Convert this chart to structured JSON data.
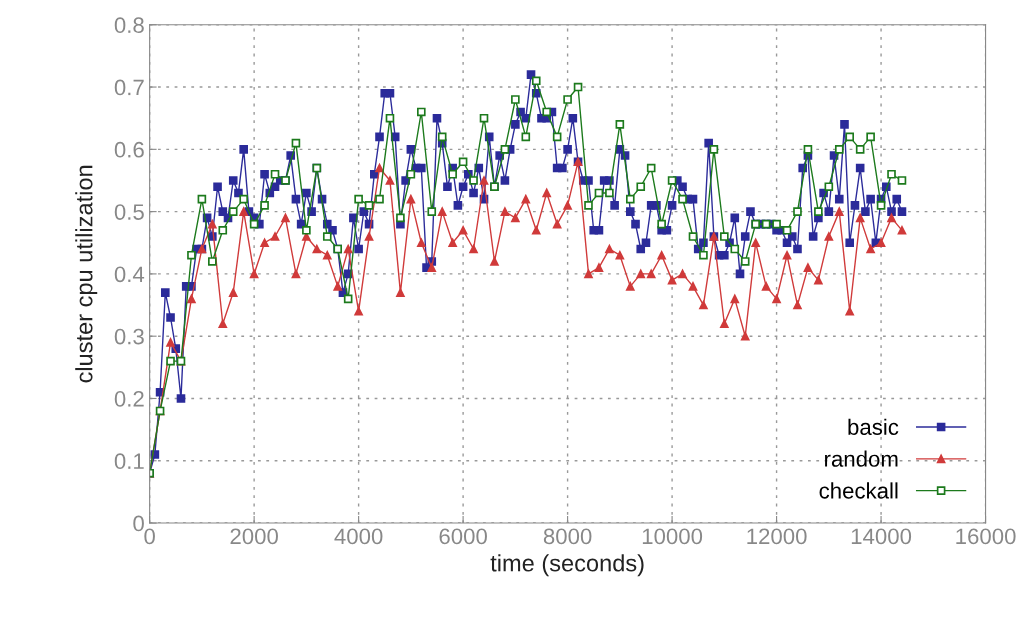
{
  "chart_data": {
    "type": "line",
    "xlabel": "time (seconds)",
    "ylabel": "cluster cpu utilization",
    "xlim": [
      0,
      16000
    ],
    "xticks": [
      0,
      2000,
      4000,
      6000,
      8000,
      10000,
      12000,
      14000,
      16000
    ],
    "ylim": [
      0,
      0.8
    ],
    "yticks": [
      0,
      0.1,
      0.2,
      0.3,
      0.4,
      0.5,
      0.6,
      0.7,
      0.8
    ],
    "grid": true,
    "legend": "bottom right",
    "series": [
      {
        "name": "basic",
        "color": "#2b2b9a",
        "marker": "square",
        "x": [
          0,
          100,
          200,
          300,
          400,
          500,
          600,
          700,
          800,
          900,
          1000,
          1100,
          1200,
          1300,
          1400,
          1500,
          1600,
          1700,
          1800,
          1900,
          2000,
          2100,
          2200,
          2300,
          2400,
          2500,
          2600,
          2700,
          2800,
          2900,
          3000,
          3100,
          3200,
          3300,
          3400,
          3500,
          3600,
          3700,
          3800,
          3900,
          4000,
          4100,
          4200,
          4300,
          4400,
          4500,
          4600,
          4700,
          4800,
          4900,
          5000,
          5100,
          5200,
          5300,
          5400,
          5500,
          5600,
          5700,
          5800,
          5900,
          6000,
          6100,
          6200,
          6300,
          6400,
          6500,
          6600,
          6700,
          6800,
          6900,
          7000,
          7100,
          7200,
          7300,
          7400,
          7500,
          7600,
          7700,
          7800,
          7900,
          8000,
          8100,
          8200,
          8300,
          8400,
          8500,
          8600,
          8700,
          8800,
          8900,
          9000,
          9100,
          9200,
          9300,
          9400,
          9500,
          9600,
          9700,
          9800,
          9900,
          10000,
          10100,
          10200,
          10300,
          10400,
          10500,
          10600,
          10700,
          10800,
          10900,
          11000,
          11100,
          11200,
          11300,
          11400,
          11500,
          11600,
          11700,
          11800,
          11900,
          12000,
          12100,
          12200,
          12300,
          12400,
          12500,
          12600,
          12700,
          12800,
          12900,
          13000,
          13100,
          13200,
          13300,
          13400,
          13500,
          13600,
          13700,
          13800,
          13900,
          14000,
          14100,
          14200,
          14300,
          14400
        ],
        "values": [
          0.08,
          0.11,
          0.21,
          0.37,
          0.33,
          0.28,
          0.2,
          0.38,
          0.38,
          0.44,
          0.44,
          0.49,
          0.46,
          0.54,
          0.5,
          0.49,
          0.55,
          0.53,
          0.6,
          0.5,
          0.49,
          0.48,
          0.56,
          0.53,
          0.54,
          0.55,
          0.55,
          0.59,
          0.52,
          0.48,
          0.53,
          0.5,
          0.57,
          0.52,
          0.48,
          0.47,
          0.44,
          0.37,
          0.4,
          0.49,
          0.44,
          0.5,
          0.48,
          0.56,
          0.62,
          0.69,
          0.69,
          0.62,
          0.48,
          0.55,
          0.6,
          0.57,
          0.57,
          0.41,
          0.42,
          0.65,
          0.61,
          0.54,
          0.57,
          0.51,
          0.54,
          0.56,
          0.53,
          0.57,
          0.52,
          0.62,
          0.54,
          0.59,
          0.55,
          0.6,
          0.64,
          0.66,
          0.65,
          0.72,
          0.69,
          0.65,
          0.65,
          0.66,
          0.57,
          0.57,
          0.6,
          0.65,
          0.58,
          0.55,
          0.55,
          0.47,
          0.47,
          0.55,
          0.55,
          0.51,
          0.6,
          0.59,
          0.5,
          0.48,
          0.44,
          0.45,
          0.51,
          0.51,
          0.47,
          0.47,
          0.51,
          0.55,
          0.54,
          0.52,
          0.52,
          0.44,
          0.45,
          0.61,
          0.46,
          0.43,
          0.43,
          0.45,
          0.49,
          0.4,
          0.46,
          0.5,
          0.48,
          0.48,
          0.48,
          0.48,
          0.47,
          0.47,
          0.45,
          0.46,
          0.44,
          0.57,
          0.59,
          0.46,
          0.49,
          0.53,
          0.5,
          0.59,
          0.52,
          0.64,
          0.45,
          0.51,
          0.57,
          0.5,
          0.52,
          0.45,
          0.52,
          0.54,
          0.5,
          0.52,
          0.5
        ]
      },
      {
        "name": "random",
        "color": "#d03a3a",
        "marker": "triangle",
        "x": [
          0,
          200,
          400,
          600,
          800,
          1000,
          1200,
          1400,
          1600,
          1800,
          2000,
          2200,
          2400,
          2600,
          2800,
          3000,
          3200,
          3400,
          3600,
          3800,
          4000,
          4200,
          4400,
          4600,
          4800,
          5000,
          5200,
          5400,
          5600,
          5800,
          6000,
          6200,
          6400,
          6600,
          6800,
          7000,
          7200,
          7400,
          7600,
          7800,
          8000,
          8200,
          8400,
          8600,
          8800,
          9000,
          9200,
          9400,
          9600,
          9800,
          10000,
          10200,
          10400,
          10600,
          10800,
          11000,
          11200,
          11400,
          11600,
          11800,
          12000,
          12200,
          12400,
          12600,
          12800,
          13000,
          13200,
          13400,
          13600,
          13800,
          14000,
          14200,
          14400
        ],
        "values": [
          0.08,
          0.18,
          0.29,
          0.26,
          0.36,
          0.44,
          0.48,
          0.32,
          0.37,
          0.5,
          0.4,
          0.45,
          0.46,
          0.49,
          0.4,
          0.46,
          0.44,
          0.43,
          0.38,
          0.44,
          0.34,
          0.46,
          0.57,
          0.55,
          0.37,
          0.52,
          0.45,
          0.41,
          0.5,
          0.45,
          0.47,
          0.44,
          0.55,
          0.42,
          0.5,
          0.49,
          0.52,
          0.47,
          0.53,
          0.48,
          0.51,
          0.58,
          0.4,
          0.41,
          0.44,
          0.43,
          0.38,
          0.4,
          0.4,
          0.43,
          0.39,
          0.4,
          0.38,
          0.35,
          0.46,
          0.32,
          0.36,
          0.3,
          0.45,
          0.38,
          0.36,
          0.43,
          0.35,
          0.41,
          0.39,
          0.46,
          0.5,
          0.34,
          0.49,
          0.44,
          0.45,
          0.49,
          0.47
        ]
      },
      {
        "name": "checkall",
        "color": "#1c7a1c",
        "marker": "square",
        "x": [
          0,
          200,
          400,
          600,
          800,
          1000,
          1200,
          1400,
          1600,
          1800,
          2000,
          2200,
          2400,
          2600,
          2800,
          3000,
          3200,
          3400,
          3600,
          3800,
          4000,
          4200,
          4400,
          4600,
          4800,
          5000,
          5200,
          5400,
          5600,
          5800,
          6000,
          6200,
          6400,
          6600,
          6800,
          7000,
          7200,
          7400,
          7600,
          7800,
          8000,
          8200,
          8400,
          8600,
          8800,
          9000,
          9200,
          9400,
          9600,
          9800,
          10000,
          10200,
          10400,
          10600,
          10800,
          11000,
          11200,
          11400,
          11600,
          11800,
          12000,
          12200,
          12400,
          12600,
          12800,
          13000,
          13200,
          13400,
          13600,
          13800,
          14000,
          14200,
          14400
        ],
        "values": [
          0.08,
          0.18,
          0.26,
          0.26,
          0.43,
          0.52,
          0.42,
          0.47,
          0.5,
          0.52,
          0.48,
          0.51,
          0.56,
          0.55,
          0.61,
          0.47,
          0.57,
          0.46,
          0.44,
          0.36,
          0.52,
          0.51,
          0.52,
          0.65,
          0.49,
          0.56,
          0.66,
          0.5,
          0.62,
          0.56,
          0.58,
          0.55,
          0.65,
          0.54,
          0.6,
          0.68,
          0.62,
          0.71,
          0.66,
          0.62,
          0.68,
          0.7,
          0.51,
          0.53,
          0.53,
          0.64,
          0.52,
          0.54,
          0.57,
          0.48,
          0.55,
          0.52,
          0.46,
          0.43,
          0.6,
          0.46,
          0.44,
          0.42,
          0.48,
          0.48,
          0.48,
          0.47,
          0.5,
          0.6,
          0.5,
          0.54,
          0.6,
          0.62,
          0.6,
          0.62,
          0.51,
          0.56,
          0.55
        ]
      }
    ]
  }
}
